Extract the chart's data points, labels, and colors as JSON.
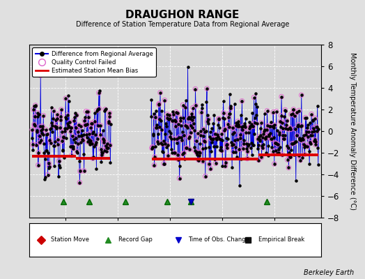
{
  "title": "DRAUGHON RANGE",
  "subtitle": "Difference of Station Temperature Data from Regional Average",
  "ylabel": "Monthly Temperature Anomaly Difference (°C)",
  "xlim": [
    1953,
    2009
  ],
  "ylim": [
    -8,
    8
  ],
  "yticks": [
    -8,
    -6,
    -4,
    -2,
    0,
    2,
    4,
    6,
    8
  ],
  "xticks": [
    1960,
    1970,
    1980,
    1990,
    2000
  ],
  "background_color": "#e0e0e0",
  "plot_bg_color": "#d8d8d8",
  "line_color": "#0000dd",
  "qc_edge_color": "#dd66cc",
  "bias_color": "#dd0000",
  "dot_color": "#000000",
  "watermark": "Berkeley Earth",
  "record_gap_years": [
    1959.5,
    1964.5,
    1971.5,
    1979.5,
    1984.0,
    1998.5
  ],
  "time_of_obs_years": [
    1984.0
  ],
  "bias_segments": [
    {
      "x_start": 1953.5,
      "x_end": 1962.0,
      "y": -2.3
    },
    {
      "x_start": 1962.0,
      "x_end": 1968.5,
      "y": -2.5
    },
    {
      "x_start": 1976.5,
      "x_end": 1986.5,
      "y": -2.6
    },
    {
      "x_start": 1986.5,
      "x_end": 1997.0,
      "y": -2.6
    },
    {
      "x_start": 1997.0,
      "x_end": 2008.5,
      "y": -2.2
    }
  ],
  "gap_ranges": [
    [
      1968.7,
      1976.3
    ]
  ],
  "seed": 12345,
  "n_points": 720
}
